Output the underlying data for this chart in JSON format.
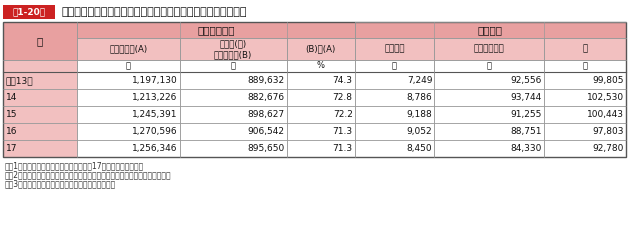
{
  "title": "業務上（重）過失致死傷事件通常受理人員及び起訴人員の推移",
  "title_prefix": "第1-20表",
  "sub_header1_left": "通常受理人員",
  "sub_header1_right": "起訴人員",
  "year_label": "年",
  "col2_headers": [
    "刑法犯総数(A)",
    "業務上(重)\n過失致死傷(B)",
    "(B)／(A)",
    "公判請求",
    "略式命令請求",
    "計"
  ],
  "unit_row": [
    "",
    "人",
    "人",
    "%",
    "人",
    "人",
    "人"
  ],
  "rows": [
    [
      "平成13年",
      "1,197,130",
      "889,632",
      "74.3",
      "7,249",
      "92,556",
      "99,805"
    ],
    [
      "14",
      "1,213,226",
      "882,676",
      "72.8",
      "8,786",
      "93,744",
      "102,530"
    ],
    [
      "15",
      "1,245,391",
      "898,627",
      "72.2",
      "9,188",
      "91,255",
      "100,443"
    ],
    [
      "16",
      "1,270,596",
      "906,542",
      "71.3",
      "9,052",
      "88,751",
      "97,803"
    ],
    [
      "17",
      "1,256,346",
      "895,650",
      "71.3",
      "8,450",
      "84,330",
      "92,780"
    ]
  ],
  "notes": [
    "注　1　法務省資料による。ただし，平成17年は仮集計である。",
    "　　2　通常受理人員とは，検察官直受・認知，司法警察員送致の人員をいう。",
    "　　3　刑法犯通常受理人員には，準刑法犯を含む。"
  ],
  "header_bg": "#e8a0a0",
  "header_bg_light": "#f2c0c0",
  "year_col_bg": "#f2c0c0",
  "white": "#ffffff",
  "border_color": "#999999",
  "border_color_dark": "#555555",
  "title_box_bg": "#cc2222",
  "title_box_fg": "#ffffff",
  "note_fg": "#333333"
}
